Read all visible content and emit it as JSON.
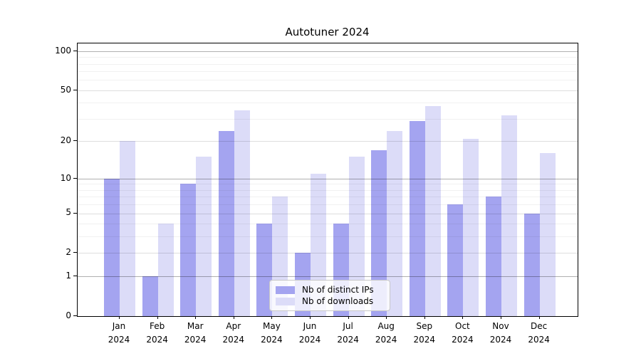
{
  "title": "Autotuner 2024",
  "legend": {
    "items": [
      {
        "label": "Nb of distinct IPs",
        "color": "#a4a4f0"
      },
      {
        "label": "Nb of downloads",
        "color": "#dcdcf8"
      }
    ]
  },
  "y_axis": {
    "scale": "log1p",
    "ticks": [
      {
        "value": 100,
        "label": "100"
      },
      {
        "value": 50,
        "label": "50"
      },
      {
        "value": 20,
        "label": "20"
      },
      {
        "value": 10,
        "label": "10"
      },
      {
        "value": 5,
        "label": "5"
      },
      {
        "value": 2,
        "label": "2"
      },
      {
        "value": 1,
        "label": "1"
      },
      {
        "value": 0,
        "label": "0"
      }
    ],
    "minor_gridline_values": [
      3,
      4,
      6,
      7,
      8,
      9,
      30,
      40,
      60,
      70,
      80,
      90
    ]
  },
  "x_axis": {
    "months": [
      "Jan",
      "Feb",
      "Mar",
      "Apr",
      "May",
      "Jun",
      "Jul",
      "Aug",
      "Sep",
      "Oct",
      "Nov",
      "Dec"
    ],
    "year": "2024"
  },
  "chart_data": {
    "type": "bar",
    "title": "Autotuner 2024",
    "categories": [
      "Jan 2024",
      "Feb 2024",
      "Mar 2024",
      "Apr 2024",
      "May 2024",
      "Jun 2024",
      "Jul 2024",
      "Aug 2024",
      "Sep 2024",
      "Oct 2024",
      "Nov 2024",
      "Dec 2024"
    ],
    "series": [
      {
        "name": "Nb of distinct IPs",
        "color": "#a4a4f0",
        "values": [
          10,
          1,
          9,
          24,
          4,
          2,
          4,
          17,
          29,
          6,
          7,
          5
        ]
      },
      {
        "name": "Nb of downloads",
        "color": "#dcdcf8",
        "values": [
          20,
          4,
          15,
          35,
          7,
          11,
          15,
          24,
          38,
          21,
          32,
          16
        ]
      }
    ],
    "yscale": "log1p",
    "ylim": [
      0,
      115
    ],
    "ytick_values": [
      0,
      1,
      2,
      5,
      10,
      20,
      50,
      100
    ],
    "grid": "on",
    "legend_position": "lower center"
  }
}
